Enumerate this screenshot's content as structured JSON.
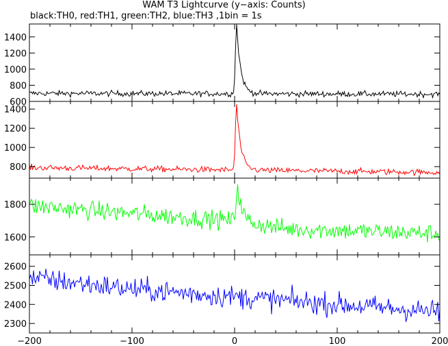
{
  "title": "WAM T3 Lightcurve (y−axis: Counts)",
  "subtitle": "black:TH0, red:TH1, green:TH2, blue:TH3 ,1bin = 1s",
  "chart_data": {
    "type": "line",
    "x_range": [
      -200,
      200
    ],
    "x_ticks": [
      -200,
      -100,
      0,
      100,
      200
    ],
    "x_tick_labels": [
      "−200",
      "−100",
      "0",
      "100",
      "200"
    ],
    "grid": false,
    "panels": [
      {
        "name": "TH0",
        "color": "#000000",
        "ylim": [
          600,
          1560
        ],
        "y_ticks": [
          600,
          800,
          1000,
          1200,
          1400
        ],
        "y_tick_labels": [
          "600",
          "800",
          "1000",
          "1200",
          "1400"
        ],
        "baseline": [
          [
            -200,
            700
          ],
          [
            200,
            690
          ]
        ],
        "noise": 25,
        "peak": {
          "x": 2,
          "height": 850,
          "rise": 1.2,
          "decay": 4
        }
      },
      {
        "name": "TH1",
        "color": "#ff0000",
        "ylim": [
          680,
          1480
        ],
        "y_ticks": [
          800,
          1000,
          1200,
          1400
        ],
        "y_tick_labels": [
          "800",
          "1000",
          "1200",
          "1400"
        ],
        "baseline": [
          [
            -200,
            790
          ],
          [
            200,
            740
          ]
        ],
        "noise": 22,
        "peak": {
          "x": 2,
          "height": 680,
          "rise": 1.2,
          "decay": 4
        }
      },
      {
        "name": "TH2",
        "color": "#00ff00",
        "ylim": [
          1490,
          1960
        ],
        "y_ticks": [
          1600,
          1800
        ],
        "y_tick_labels": [
          "1600",
          "1800"
        ],
        "baseline": [
          [
            -200,
            1790
          ],
          [
            -50,
            1720
          ],
          [
            0,
            1700
          ],
          [
            50,
            1650
          ],
          [
            200,
            1620
          ]
        ],
        "noise": 40,
        "peak": {
          "x": 3,
          "height": 220,
          "rise": 1.5,
          "decay": 4
        }
      },
      {
        "name": "TH3",
        "color": "#0000ff",
        "ylim": [
          2250,
          2660
        ],
        "y_ticks": [
          2300,
          2400,
          2500,
          2600
        ],
        "y_tick_labels": [
          "2300",
          "2400",
          "2500",
          "2600"
        ],
        "baseline": [
          [
            -200,
            2540
          ],
          [
            -100,
            2480
          ],
          [
            0,
            2440
          ],
          [
            100,
            2400
          ],
          [
            200,
            2360
          ]
        ],
        "noise": 42,
        "peak": null
      }
    ]
  }
}
